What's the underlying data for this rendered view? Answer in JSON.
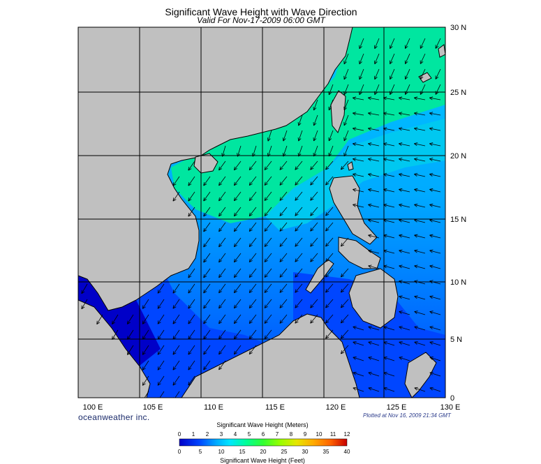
{
  "header": {
    "title": "Significant Wave Height with Wave Direction",
    "subtitle": "Valid For Nov-17-2009 06:00 GMT"
  },
  "map": {
    "lon_labels": [
      "100 E",
      "105 E",
      "110 E",
      "115 E",
      "120 E",
      "125 E",
      "130 E"
    ],
    "lat_labels": [
      "30 N",
      "25 N",
      "20 N",
      "15 N",
      "10 N",
      "5 N",
      "0"
    ],
    "land_color": "#c0c0c0",
    "grid_color": "#000000"
  },
  "footer": {
    "brand": "oceanweather inc.",
    "plotted": "Plotted at Nov 16, 2009 21:34 GMT"
  },
  "colorbar": {
    "title_top": "Significant Wave Height (Meters)",
    "title_bottom": "Significant Wave Height (Feet)",
    "meters": [
      "0",
      "1",
      "2",
      "3",
      "4",
      "5",
      "6",
      "7",
      "8",
      "9",
      "10",
      "11",
      "12"
    ],
    "feet": [
      "0",
      "5",
      "10",
      "15",
      "20",
      "25",
      "30",
      "35",
      "40"
    ],
    "colors": [
      "#0000c8",
      "#0046ff",
      "#00aaff",
      "#00e6ff",
      "#00ff96",
      "#32ff32",
      "#96ff00",
      "#e6e600",
      "#ffaa00",
      "#ff6400",
      "#ff1e00",
      "#c80000"
    ]
  }
}
